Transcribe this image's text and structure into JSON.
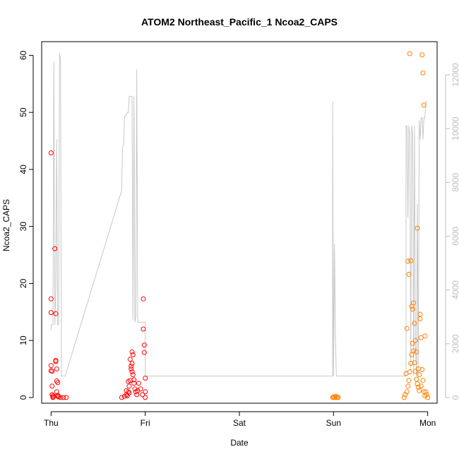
{
  "chart_data": {
    "type": "scatter",
    "title": "ATOM2 Northeast_Pacific_1 Ncoa2_CAPS",
    "xlabel": "Date",
    "ylabel": "Ncoa2_CAPS",
    "x_ticks": [
      "Thu",
      "Fri",
      "Sat",
      "Sun",
      "Mon"
    ],
    "x_tick_days": [
      0,
      1,
      2,
      3,
      4
    ],
    "xlim": [
      -0.1,
      4.1
    ],
    "ylim": [
      -1,
      62.4
    ],
    "y_ticks": [
      0,
      10,
      20,
      30,
      40,
      50,
      60
    ],
    "y2lim": [
      -212,
      13233
    ],
    "y2_ticks": [
      0,
      2000,
      4000,
      6000,
      8000,
      10000,
      12000
    ],
    "grid": false,
    "legend": "none",
    "colors": {
      "series_red": "#ff0000",
      "series_orange": "#ff8000",
      "line": "#c8c8c8"
    },
    "series": [
      {
        "color": "#ff0000",
        "x": [
          0.0,
          0.0,
          0.0,
          0.0,
          0.0,
          0.01,
          0.01,
          0.01,
          0.02,
          0.02,
          0.02,
          0.04,
          0.05,
          0.05,
          0.05,
          0.06,
          0.06,
          0.06,
          0.07,
          0.07,
          0.07,
          0.08,
          0.1,
          0.13,
          0.16,
          0.75,
          0.78,
          0.8,
          0.82,
          0.83,
          0.84,
          0.85,
          0.86,
          0.86,
          0.87,
          0.87,
          0.88,
          0.89,
          0.9,
          0.91,
          0.92,
          0.93,
          0.95,
          0.97,
          0.98,
          0.98,
          0.99,
          0.99,
          1.0,
          1.0,
          1.0,
          0.84,
          0.85,
          0.82,
          0.8,
          0.86,
          0.88,
          0.83,
          0.81
        ],
        "y": [
          42.9,
          17.3,
          14.9,
          5.6,
          4.7,
          4.6,
          2.0,
          0.5,
          0.3,
          0.1,
          0.0,
          26.1,
          14.7,
          6.5,
          6.3,
          5.0,
          2.9,
          1.0,
          2.6,
          0.4,
          0.2,
          0.1,
          0.0,
          0.0,
          0.0,
          0.0,
          0.2,
          0.5,
          1.0,
          2.0,
          3.0,
          5.0,
          6.0,
          8.0,
          7.5,
          4.0,
          2.5,
          1.5,
          1.0,
          0.5,
          1.2,
          2.5,
          1.5,
          0.5,
          17.3,
          12.0,
          9.2,
          7.9,
          3.4,
          1.0,
          0.0,
          6.7,
          5.5,
          2.8,
          1.2,
          4.5,
          3.1,
          0.8,
          0.3
        ]
      },
      {
        "color": "#ff8000",
        "x": [
          2.99,
          3.0,
          3.01,
          3.02,
          3.03,
          3.04,
          3.05,
          3.75,
          3.76,
          3.77,
          3.78,
          3.79,
          3.8,
          3.81,
          3.82,
          3.83,
          3.84,
          3.85,
          3.86,
          3.87,
          3.88,
          3.89,
          3.9,
          3.91,
          3.92,
          3.93,
          3.94,
          3.95,
          3.96,
          3.97,
          3.98,
          3.99,
          4.0,
          3.78,
          3.79,
          3.8,
          3.81,
          3.82,
          3.83,
          3.84,
          3.85,
          3.86,
          3.87,
          3.88,
          3.89,
          3.9,
          3.91,
          3.92,
          3.93,
          3.94,
          3.95,
          3.96,
          3.97
        ],
        "y": [
          0.0,
          0.1,
          0.0,
          0.2,
          0.0,
          0.1,
          0.0,
          0.0,
          0.5,
          4.2,
          12.1,
          23.9,
          21.6,
          60.3,
          24.0,
          16.0,
          15.5,
          16.6,
          13.0,
          10.0,
          8.0,
          29.7,
          5.0,
          4.0,
          14.6,
          2.0,
          60.1,
          56.9,
          51.3,
          10.8,
          1.0,
          0.5,
          0.0,
          1.0,
          2.0,
          3.0,
          4.5,
          6.0,
          7.5,
          9.5,
          8.2,
          6.1,
          4.6,
          3.2,
          2.4,
          1.8,
          1.2,
          13.8,
          10.5,
          4.9,
          3.0,
          1.0,
          0.3
        ]
      }
    ],
    "line_series": {
      "color": "#c8c8c8",
      "axis": "right",
      "x": [
        0.0,
        0.0,
        0.0,
        0.02,
        0.03,
        0.04,
        0.05,
        0.06,
        0.07,
        0.08,
        0.09,
        0.1,
        0.11,
        0.12,
        0.13,
        0.14,
        0.15,
        0.15,
        0.75,
        0.75,
        0.76,
        0.77,
        0.78,
        0.79,
        0.8,
        0.81,
        0.82,
        0.83,
        0.84,
        0.85,
        0.86,
        0.87,
        0.88,
        0.89,
        0.9,
        0.91,
        0.92,
        0.93,
        0.94,
        0.95,
        0.96,
        0.97,
        0.98,
        0.99,
        1.0,
        1.0,
        2.99,
        2.99,
        3.0,
        3.01,
        3.02,
        3.03,
        3.04,
        3.05,
        3.05,
        3.77,
        3.77,
        3.78,
        3.79,
        3.8,
        3.81,
        3.82,
        3.83,
        3.84,
        3.85,
        3.86,
        3.87,
        3.88,
        3.89,
        3.9,
        3.91,
        3.92,
        3.93,
        3.94,
        3.95,
        3.96,
        3.97,
        3.98,
        3.99,
        4.0
      ],
      "y": [
        2500,
        2700,
        2700,
        2700,
        12500,
        2700,
        4000,
        9600,
        2700,
        2700,
        12800,
        12600,
        800,
        800,
        800,
        800,
        800,
        800,
        7700,
        8000,
        9300,
        9400,
        10400,
        10500,
        10500,
        10600,
        10600,
        11200,
        11200,
        11200,
        11200,
        2900,
        11200,
        2800,
        3000,
        12200,
        2800,
        2800,
        2800,
        2800,
        2800,
        2800,
        2800,
        2800,
        2800,
        800,
        800,
        11000,
        800,
        5700,
        2300,
        800,
        800,
        800,
        800,
        800,
        10100,
        10100,
        6700,
        10100,
        9800,
        1000,
        10100,
        9800,
        800,
        10100,
        2000,
        800,
        7200,
        800,
        10300,
        9600,
        10400,
        10400,
        9600,
        10400,
        10400,
        11000,
        11000,
        11000
      ]
    }
  }
}
